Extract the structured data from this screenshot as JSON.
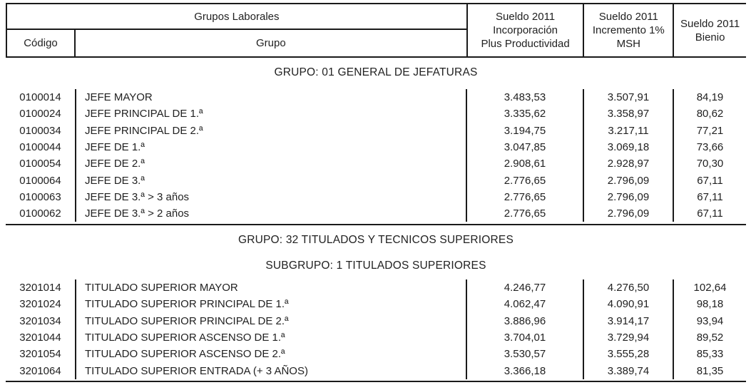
{
  "colors": {
    "text": "#212121",
    "line": "#1a1a1a",
    "background": "#ffffff"
  },
  "table": {
    "header": {
      "grupos_laborales": "Grupos Laborales",
      "codigo": "Código",
      "grupo": "Grupo",
      "col_incorporacion": {
        "line1": "Sueldo 2011",
        "line2": "Incorporación",
        "line3": "Plus Productividad"
      },
      "col_incremento": {
        "line1": "Sueldo 2011",
        "line2": "Incremento 1%",
        "line3": "MSH"
      },
      "col_bienio": {
        "line1": "Sueldo 2011",
        "line2": "Bienio"
      }
    },
    "sections": [
      {
        "title": "GRUPO: 01 GENERAL DE JEFATURAS",
        "rows": [
          {
            "code": "0100014",
            "group": "JEFE MAYOR",
            "incorporacion": "3.483,53",
            "incremento": "3.507,91",
            "bienio": "84,19"
          },
          {
            "code": "0100024",
            "group": "JEFE PRINCIPAL DE 1.ª",
            "incorporacion": "3.335,62",
            "incremento": "3.358,97",
            "bienio": "80,62"
          },
          {
            "code": "0100034",
            "group": "JEFE PRINCIPAL DE 2.ª",
            "incorporacion": "3.194,75",
            "incremento": "3.217,11",
            "bienio": "77,21"
          },
          {
            "code": "0100044",
            "group": "JEFE DE 1.ª",
            "incorporacion": "3.047,85",
            "incremento": "3.069,18",
            "bienio": "73,66"
          },
          {
            "code": "0100054",
            "group": "JEFE DE 2.ª",
            "incorporacion": "2.908,61",
            "incremento": "2.928,97",
            "bienio": "70,30"
          },
          {
            "code": "0100064",
            "group": "JEFE DE 3.ª",
            "incorporacion": "2.776,65",
            "incremento": "2.796,09",
            "bienio": "67,11"
          },
          {
            "code": "0100063",
            "group": "JEFE DE 3.ª > 3 años",
            "incorporacion": "2.776,65",
            "incremento": "2.796,09",
            "bienio": "67,11"
          },
          {
            "code": "0100062",
            "group": "JEFE DE 3.ª > 2 años",
            "incorporacion": "2.776,65",
            "incremento": "2.796,09",
            "bienio": "67,11"
          }
        ]
      },
      {
        "title": "GRUPO: 32 TITULADOS Y TECNICOS SUPERIORES",
        "subtitle": "SUBGRUPO: 1 TITULADOS SUPERIORES",
        "rows": [
          {
            "code": "3201014",
            "group": "TITULADO SUPERIOR MAYOR",
            "incorporacion": "4.246,77",
            "incremento": "4.276,50",
            "bienio": "102,64"
          },
          {
            "code": "3201024",
            "group": "TITULADO SUPERIOR PRINCIPAL DE 1.ª",
            "incorporacion": "4.062,47",
            "incremento": "4.090,91",
            "bienio": "98,18"
          },
          {
            "code": "3201034",
            "group": "TITULADO SUPERIOR PRINCIPAL DE 2.ª",
            "incorporacion": "3.886,96",
            "incremento": "3.914,17",
            "bienio": "93,94"
          },
          {
            "code": "3201044",
            "group": "TITULADO SUPERIOR ASCENSO DE 1.ª",
            "incorporacion": "3.704,01",
            "incremento": "3.729,94",
            "bienio": "89,52"
          },
          {
            "code": "3201054",
            "group": "TITULADO SUPERIOR ASCENSO DE 2.ª",
            "incorporacion": "3.530,57",
            "incremento": "3.555,28",
            "bienio": "85,33"
          },
          {
            "code": "3201064",
            "group": "TITULADO SUPERIOR ENTRADA (+ 3 AÑOS)",
            "incorporacion": "3.366,18",
            "incremento": "3.389,74",
            "bienio": "81,35"
          }
        ]
      }
    ]
  }
}
